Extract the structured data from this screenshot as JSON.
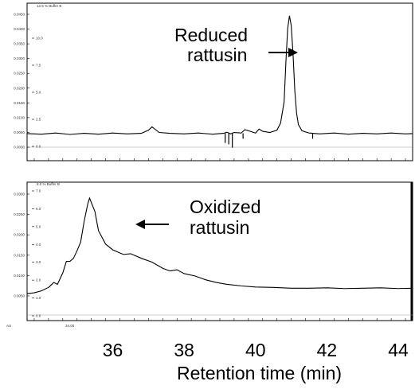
{
  "chart_data": [
    {
      "type": "line",
      "panel": "top",
      "title": "",
      "series_label": "12.5 % Buffer B",
      "ylabel": "",
      "yticks_au": [
        "0.0450",
        "0.0400",
        "0.0350",
        "0.0300",
        "0.0250",
        "0.0200",
        "0.0150",
        "0.0100",
        "0.0050",
        "0.0000"
      ],
      "yticks_buffer": [
        "10.0",
        "7.5",
        "5.0",
        "2.5",
        "0.0"
      ],
      "ylim": [
        0,
        0.047
      ],
      "xlim": [
        33.6,
        44.4
      ],
      "annotation": {
        "line1": "Reduced",
        "line2": "rattusin",
        "arrow": "right"
      },
      "x": [
        33.6,
        34.0,
        34.4,
        34.8,
        35.2,
        35.6,
        36.0,
        36.4,
        36.8,
        37.0,
        37.1,
        37.3,
        37.6,
        38.0,
        38.4,
        38.8,
        39.1,
        39.2,
        39.3,
        39.4,
        39.6,
        39.7,
        39.8,
        40.0,
        40.1,
        40.2,
        40.4,
        40.6,
        40.7,
        40.8,
        40.85,
        40.9,
        40.95,
        41.0,
        41.05,
        41.1,
        41.15,
        41.2,
        41.3,
        41.5,
        41.8,
        42.2,
        42.6,
        43.0,
        43.4,
        43.8,
        44.2,
        44.4
      ],
      "y": [
        0.0048,
        0.0046,
        0.005,
        0.0045,
        0.0049,
        0.0046,
        0.005,
        0.0047,
        0.0049,
        0.006,
        0.0072,
        0.0052,
        0.0049,
        0.0047,
        0.005,
        0.0046,
        0.0049,
        0.0053,
        0.0047,
        0.0052,
        0.005,
        0.0062,
        0.0058,
        0.005,
        0.0064,
        0.0056,
        0.0052,
        0.006,
        0.0085,
        0.016,
        0.03,
        0.042,
        0.0465,
        0.043,
        0.033,
        0.02,
        0.012,
        0.008,
        0.0058,
        0.005,
        0.0047,
        0.005,
        0.0046,
        0.0049,
        0.0047,
        0.005,
        0.0047,
        0.0048
      ],
      "spikes": [
        {
          "x": 39.15,
          "y": 0.0015
        },
        {
          "x": 39.25,
          "y": 0.001
        },
        {
          "x": 39.35,
          "y": -0.0002
        },
        {
          "x": 39.65,
          "y": 0.003
        },
        {
          "x": 41.6,
          "y": 0.003
        }
      ]
    },
    {
      "type": "line",
      "panel": "bottom",
      "title": "",
      "series_label": "8.0 % Buffer B",
      "au_unit_label": "AU",
      "ylabel": "",
      "yticks_au": [
        "0.0300",
        "0.0250",
        "0.0200",
        "0.0150",
        "0.0100",
        "0.0050"
      ],
      "yticks_buffer": [
        "7.0",
        "6.0",
        "5.0",
        "4.0",
        "3.0",
        "2.0",
        "1.0",
        "0.0"
      ],
      "ylim": [
        0,
        0.033
      ],
      "xlim": [
        33.6,
        44.4
      ],
      "small_xtick_label": "34.00",
      "annotation": {
        "line1": "Oxidized",
        "line2": "rattusin",
        "arrow": "left"
      },
      "x": [
        33.6,
        33.8,
        34.0,
        34.2,
        34.35,
        34.45,
        34.6,
        34.7,
        34.8,
        34.9,
        35.0,
        35.1,
        35.2,
        35.3,
        35.35,
        35.5,
        35.6,
        35.8,
        36.0,
        36.3,
        36.5,
        36.8,
        37.1,
        37.4,
        37.6,
        37.8,
        38.0,
        38.3,
        38.6,
        38.9,
        39.2,
        39.6,
        40.0,
        40.5,
        41.0,
        41.5,
        42.0,
        42.5,
        43.0,
        43.5,
        44.0,
        44.4
      ],
      "y": [
        0.0056,
        0.0058,
        0.0063,
        0.0072,
        0.0085,
        0.008,
        0.011,
        0.014,
        0.014,
        0.0148,
        0.0168,
        0.019,
        0.0245,
        0.029,
        0.0305,
        0.027,
        0.022,
        0.0185,
        0.017,
        0.0158,
        0.016,
        0.0148,
        0.0138,
        0.0122,
        0.0115,
        0.0118,
        0.0108,
        0.0102,
        0.0092,
        0.0085,
        0.008,
        0.0076,
        0.0073,
        0.0072,
        0.007,
        0.007,
        0.0071,
        0.0069,
        0.007,
        0.0071,
        0.0069,
        0.007
      ]
    }
  ],
  "x_axis": {
    "tick_labels": [
      "36",
      "38",
      "40",
      "42",
      "44"
    ],
    "tick_values": [
      36,
      38,
      40,
      42,
      44
    ],
    "label": "Retention time (min)"
  }
}
